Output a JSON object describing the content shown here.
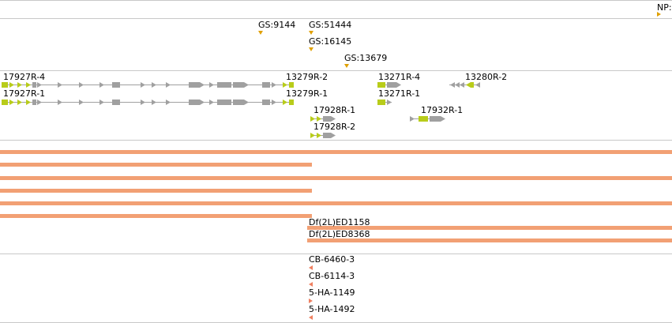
{
  "tracks": {
    "np": {
      "label": "NP:"
    },
    "gs": {
      "items": [
        {
          "label": "GS:9144"
        },
        {
          "label": "GS:51444"
        },
        {
          "label": "GS:16145"
        },
        {
          "label": "GS:13679"
        }
      ]
    },
    "genes": {
      "labels": [
        {
          "label": "17927R-4"
        },
        {
          "label": "17927R-1"
        },
        {
          "label": "13279R-2"
        },
        {
          "label": "13279R-1"
        },
        {
          "label": "13271R-4"
        },
        {
          "label": "13271R-1"
        },
        {
          "label": "13280R-2"
        },
        {
          "label": "17928R-1"
        },
        {
          "label": "17928R-2"
        },
        {
          "label": "17932R-1"
        }
      ]
    },
    "deficiencies": {
      "labels": [
        {
          "label": "Df(2L)ED1158"
        },
        {
          "label": "Df(2L)ED8368"
        }
      ]
    },
    "insertions": {
      "items": [
        {
          "label": "CB-6460-3"
        },
        {
          "label": "CB-6114-3"
        },
        {
          "label": "5-HA-1149"
        },
        {
          "label": "5-HA-1492"
        }
      ]
    }
  },
  "colors": {
    "separator": "#c8c8c8",
    "gs_marker": "#e0a000",
    "gene_coding": "#b8cc1a",
    "gene_utr": "#a0a0a0",
    "deficiency_bar": "#f2a074",
    "insertion_marker": "#ef8060"
  }
}
